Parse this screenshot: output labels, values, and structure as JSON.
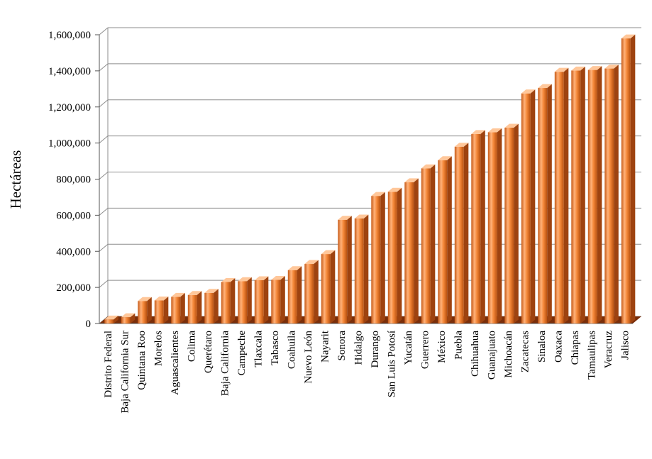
{
  "chart_data": {
    "type": "bar",
    "title": "",
    "xlabel": "",
    "ylabel": "Hectáreas",
    "ylim": [
      0,
      1600000
    ],
    "yticks": [
      "0",
      "200,000",
      "400,000",
      "600,000",
      "800,000",
      "1,000,000",
      "1,200,000",
      "1,400,000",
      "1,600,000"
    ],
    "grid": true,
    "legend": "none",
    "bar_color": "#f08a3c",
    "categories": [
      "Distrito Federal",
      "Baja California Sur",
      "Quintana Roo",
      "Morelos",
      "Aguascalientes",
      "Colima",
      "Querétaro",
      "Baja California",
      "Campeche",
      "Tlaxcala",
      "Tabasco",
      "Coahuila",
      "Nuevo León",
      "Nayarit",
      "Sonora",
      "Hidalgo",
      "Durango",
      "San Luis Potosí",
      "Yucatán",
      "Guerrero",
      "México",
      "Puebla",
      "Chihuahua",
      "Guanajuato",
      "Michoacán",
      "Zacatecas",
      "Sinaloa",
      "Oaxaca",
      "Chiapas",
      "Tamaulipas",
      "Veracruz",
      "Jalisco"
    ],
    "values": [
      22000,
      35000,
      125000,
      128000,
      148000,
      158000,
      170000,
      230000,
      235000,
      240000,
      242000,
      296000,
      330000,
      385000,
      575000,
      582000,
      707000,
      730000,
      783000,
      860000,
      905000,
      980000,
      1050000,
      1060000,
      1085000,
      1275000,
      1305000,
      1395000,
      1402000,
      1405000,
      1413000,
      1580000
    ]
  }
}
